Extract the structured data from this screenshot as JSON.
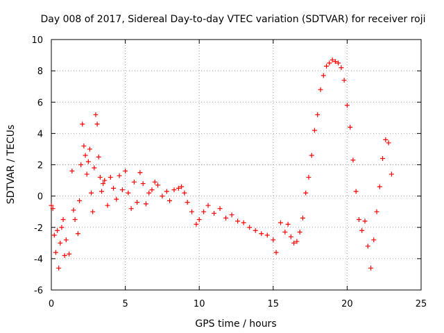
{
  "chart_data": {
    "type": "scatter",
    "title": "Day 008 of 2017, Sidereal Day-to-day VTEC variation (SDTVAR) for receiver roji",
    "xlabel": "GPS time / hours",
    "ylabel": "SDTVAR / TECUs",
    "xlim": [
      0,
      25
    ],
    "ylim": [
      -6,
      10
    ],
    "xticks": [
      0,
      5,
      10,
      15,
      20,
      25
    ],
    "yticks": [
      -6,
      -4,
      -2,
      0,
      2,
      4,
      6,
      8,
      10
    ],
    "grid": true,
    "marker": "+",
    "series": [
      {
        "name": "SDTVAR",
        "color": "#ff0000",
        "x": [
          0.0,
          0.1,
          0.2,
          0.3,
          0.4,
          0.5,
          0.6,
          0.7,
          0.8,
          0.9,
          1.0,
          1.2,
          1.4,
          1.5,
          1.6,
          1.8,
          1.9,
          2.0,
          2.1,
          2.2,
          2.3,
          2.4,
          2.5,
          2.6,
          2.7,
          2.8,
          2.9,
          3.0,
          3.1,
          3.2,
          3.3,
          3.4,
          3.5,
          3.6,
          3.8,
          4.0,
          4.2,
          4.4,
          4.6,
          4.8,
          5.0,
          5.2,
          5.4,
          5.6,
          5.8,
          6.0,
          6.2,
          6.4,
          6.6,
          6.8,
          7.0,
          7.2,
          7.5,
          7.8,
          8.0,
          8.3,
          8.6,
          8.8,
          9.0,
          9.2,
          9.5,
          9.8,
          10.0,
          10.3,
          10.6,
          11.0,
          11.4,
          11.8,
          12.2,
          12.6,
          13.0,
          13.4,
          13.8,
          14.2,
          14.6,
          15.0,
          15.2,
          15.5,
          15.8,
          16.0,
          16.2,
          16.4,
          16.6,
          16.8,
          17.0,
          17.2,
          17.4,
          17.6,
          17.8,
          18.0,
          18.2,
          18.4,
          18.6,
          18.8,
          19.0,
          19.2,
          19.4,
          19.6,
          19.8,
          20.0,
          20.2,
          20.4,
          20.6,
          20.8,
          21.0,
          21.2,
          21.4,
          21.6,
          21.8,
          22.0,
          22.2,
          22.4,
          22.6,
          22.8,
          23.0
        ],
        "y": [
          -0.6,
          -0.8,
          -2.5,
          -3.6,
          -2.2,
          -4.6,
          -3.0,
          -2.0,
          -1.5,
          -3.8,
          -2.8,
          -3.7,
          1.6,
          -0.9,
          -1.5,
          -2.4,
          -0.3,
          2.0,
          4.6,
          3.2,
          2.6,
          1.4,
          2.2,
          3.0,
          0.2,
          -1.0,
          1.8,
          5.2,
          4.6,
          2.5,
          1.2,
          0.3,
          0.8,
          1.0,
          -0.6,
          1.2,
          0.5,
          -0.2,
          1.3,
          0.4,
          1.6,
          0.2,
          -0.8,
          0.9,
          -0.4,
          1.5,
          0.8,
          -0.5,
          0.2,
          0.4,
          0.9,
          0.7,
          0.0,
          0.3,
          -0.3,
          0.4,
          0.5,
          0.6,
          0.2,
          -0.4,
          -1.0,
          -1.8,
          -1.5,
          -1.0,
          -0.6,
          -1.1,
          -0.8,
          -1.4,
          -1.2,
          -1.6,
          -1.7,
          -2.0,
          -2.2,
          -2.4,
          -2.5,
          -2.8,
          -3.6,
          -1.7,
          -2.3,
          -1.8,
          -2.6,
          -3.0,
          -2.9,
          -2.3,
          -1.4,
          0.2,
          1.2,
          2.6,
          4.2,
          5.2,
          6.8,
          7.7,
          8.3,
          8.5,
          8.7,
          8.6,
          8.5,
          8.2,
          7.4,
          5.8,
          4.4,
          2.3,
          0.3,
          -1.5,
          -2.2,
          -1.6,
          -3.2,
          -4.6,
          -2.8,
          -1.0,
          0.6,
          2.4,
          3.6,
          3.4,
          1.4
        ]
      }
    ]
  }
}
